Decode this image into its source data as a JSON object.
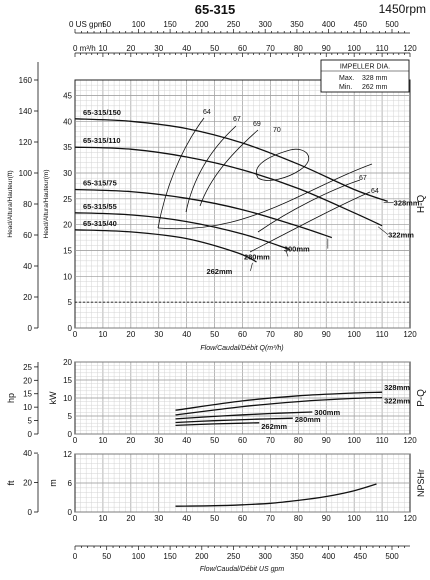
{
  "header": {
    "title": "65-315",
    "speed": "1450rpm"
  },
  "top_axes": {
    "us_gpm_label": "US gpm",
    "us_gpm_ticks": [
      "0",
      "50",
      "100",
      "150",
      "200",
      "250",
      "300",
      "350",
      "400",
      "450",
      "500"
    ],
    "m3h_label": "m³/h",
    "m3h_ticks": [
      "0",
      "10",
      "20",
      "30",
      "40",
      "50",
      "60",
      "70",
      "80",
      "90",
      "100",
      "110",
      "120"
    ]
  },
  "impeller_box": {
    "title": "IMPELLER DIA.",
    "max_label": "Max.",
    "max_value": "328 mm",
    "min_label": "Min.",
    "min_value": "262 mm"
  },
  "bottom_axis": {
    "title": "Flow/Caudal/Débit  US gpm"
  },
  "chart_data": [
    {
      "type": "line",
      "panel": "H-Q",
      "panel_label": "H-Q",
      "xlabel": "Flow/Caudal/Débit Q(m³/h)",
      "ylabel_left": "Head/Altura/Hauteur(ft)",
      "ylabel_right": "Head/Altura/Hauteur(m)",
      "xlim": [
        0,
        120
      ],
      "ylim": [
        0,
        48
      ],
      "ylim_ft": [
        0,
        160
      ],
      "x_ticks": [
        "0",
        "10",
        "20",
        "30",
        "40",
        "50",
        "60",
        "70",
        "80",
        "90",
        "100",
        "110",
        "120"
      ],
      "y_ticks": [
        "0",
        "5",
        "10",
        "15",
        "20",
        "25",
        "30",
        "35",
        "40",
        "45"
      ],
      "y_ticks_ft": [
        "0",
        "20",
        "40",
        "60",
        "80",
        "100",
        "120",
        "140",
        "160"
      ],
      "grid": true,
      "series": [
        {
          "name": "328mm",
          "curve_label": "65-315/150",
          "x": [
            0,
            20,
            40,
            60,
            80,
            100,
            112
          ],
          "y": [
            40.5,
            40,
            38.6,
            35.8,
            31.7,
            26.8,
            24.5
          ]
        },
        {
          "name": "322mm",
          "curve_label": "65-315/110",
          "x": [
            0,
            20,
            40,
            60,
            80,
            100,
            110
          ],
          "y": [
            35,
            34.6,
            33.1,
            30.6,
            27,
            22.3,
            19.8
          ]
        },
        {
          "name": "300mm",
          "curve_label": "65-315/75",
          "x": [
            0,
            20,
            40,
            60,
            80,
            92
          ],
          "y": [
            26.8,
            26.4,
            25.1,
            22.9,
            19.7,
            17.5
          ]
        },
        {
          "name": "280mm",
          "curve_label": "65-315/55",
          "x": [
            0,
            20,
            40,
            60,
            77
          ],
          "y": [
            22.3,
            21.9,
            20.6,
            18.2,
            15.2
          ]
        },
        {
          "name": "262mm",
          "curve_label": "65-315/40",
          "x": [
            0,
            20,
            40,
            58,
            65
          ],
          "y": [
            19,
            18.6,
            17.3,
            14.6,
            12.8
          ]
        }
      ],
      "efficiency_labels": [
        "64",
        "67",
        "69",
        "70",
        "67",
        "64"
      ]
    },
    {
      "type": "line",
      "panel": "P-Q",
      "panel_label": "P-Q",
      "ylabel_left": "hp",
      "ylabel_right": "kW",
      "xlim": [
        0,
        120
      ],
      "ylim": [
        0,
        20
      ],
      "y_ticks": [
        "0",
        "5",
        "10",
        "15",
        "20"
      ],
      "y_ticks_hp": [
        "0",
        "5",
        "10",
        "15",
        "20",
        "25"
      ],
      "grid": true,
      "series": [
        {
          "name": "328mm",
          "x": [
            36,
            60,
            80,
            100,
            110
          ],
          "y": [
            6.6,
            9.2,
            10.6,
            11.4,
            11.6
          ]
        },
        {
          "name": "322mm",
          "x": [
            36,
            60,
            80,
            100,
            110
          ],
          "y": [
            5.3,
            7.6,
            9,
            9.9,
            10.1
          ]
        },
        {
          "name": "300mm",
          "x": [
            36,
            50,
            70,
            85
          ],
          "y": [
            4.2,
            4.9,
            5.7,
            6.1
          ]
        },
        {
          "name": "280mm",
          "x": [
            36,
            50,
            65,
            78
          ],
          "y": [
            3.2,
            3.7,
            4.1,
            4.4
          ]
        },
        {
          "name": "262mm",
          "x": [
            36,
            50,
            60,
            66
          ],
          "y": [
            2.4,
            2.8,
            3,
            3.1
          ]
        }
      ]
    },
    {
      "type": "line",
      "panel": "NPSHr",
      "panel_label": "NPSHr",
      "ylabel_left": "ft",
      "ylabel_right": "m",
      "xlim": [
        0,
        120
      ],
      "ylim": [
        0,
        12
      ],
      "y_ticks": [
        "0",
        "6",
        "12"
      ],
      "y_ticks_ft": [
        "0",
        "20",
        "40"
      ],
      "grid": true,
      "series": [
        {
          "name": "NPSHr",
          "x": [
            36,
            50,
            60,
            70,
            80,
            90,
            100,
            108
          ],
          "y": [
            1.2,
            1.3,
            1.5,
            1.8,
            2.4,
            3.2,
            4.4,
            5.8
          ]
        }
      ]
    }
  ]
}
